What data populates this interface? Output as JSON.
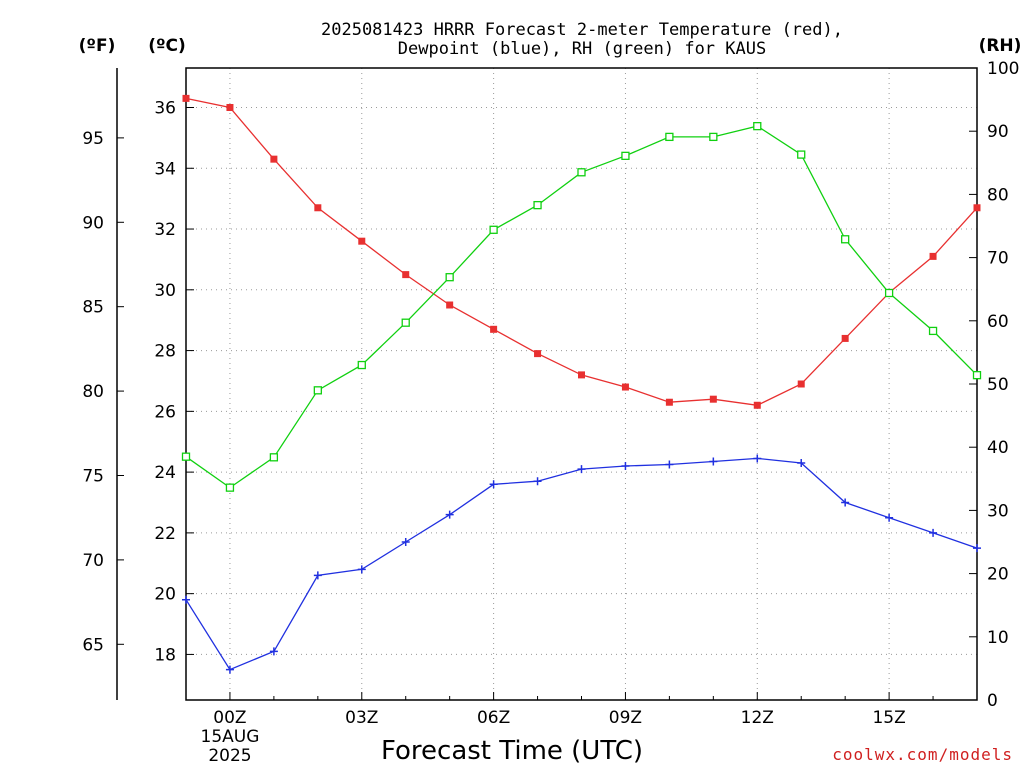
{
  "chart_data": {
    "type": "line",
    "title_line1": "2025081423 HRRR Forecast 2-meter Temperature (red),",
    "title_line2": "Dewpoint (blue), RH (green) for KAUS",
    "xlabel": "Forecast Time (UTC)",
    "unit_f": "(ºF)",
    "unit_c": "(ºC)",
    "unit_rh": "(RH)",
    "x_ticks": [
      "00Z",
      "03Z",
      "06Z",
      "09Z",
      "12Z",
      "15Z"
    ],
    "x_tick_hours": [
      23,
      26,
      29,
      32,
      35,
      38
    ],
    "date_label_1": "15AUG",
    "date_label_2": "2025",
    "x_range_hours": [
      22,
      40
    ],
    "c_range": [
      16.5,
      37.3
    ],
    "c_ticks": [
      18,
      20,
      22,
      24,
      26,
      28,
      30,
      32,
      34,
      36
    ],
    "f_ticks": [
      65,
      70,
      75,
      80,
      85,
      90,
      95
    ],
    "rh_range": [
      0,
      100
    ],
    "rh_ticks": [
      0,
      10,
      20,
      30,
      40,
      50,
      60,
      70,
      80,
      90,
      100
    ],
    "credit": "coolwx.com/models",
    "series": [
      {
        "name": "Temperature",
        "color": "#e83030",
        "marker": "square-filled",
        "axis": "c",
        "values": [
          36.3,
          36.0,
          34.3,
          32.7,
          31.6,
          30.5,
          29.5,
          28.7,
          27.9,
          27.2,
          26.8,
          26.3,
          26.4,
          26.2,
          26.9,
          28.4,
          29.9,
          31.1,
          32.7
        ]
      },
      {
        "name": "Dewpoint",
        "color": "#2030e0",
        "marker": "plus",
        "axis": "c",
        "values": [
          19.8,
          17.5,
          18.1,
          20.6,
          20.8,
          21.7,
          22.6,
          23.6,
          23.7,
          24.1,
          24.2,
          24.25,
          24.35,
          24.45,
          24.3,
          23.0,
          22.5,
          22.0,
          21.5
        ]
      },
      {
        "name": "RH",
        "color": "#10d010",
        "marker": "square-open",
        "axis": "rh",
        "values": [
          38.5,
          33.6,
          38.4,
          49.0,
          53.0,
          59.7,
          66.9,
          74.4,
          78.3,
          83.5,
          86.1,
          89.1,
          89.1,
          90.8,
          86.3,
          72.9,
          64.4,
          58.4,
          51.4
        ]
      }
    ]
  }
}
